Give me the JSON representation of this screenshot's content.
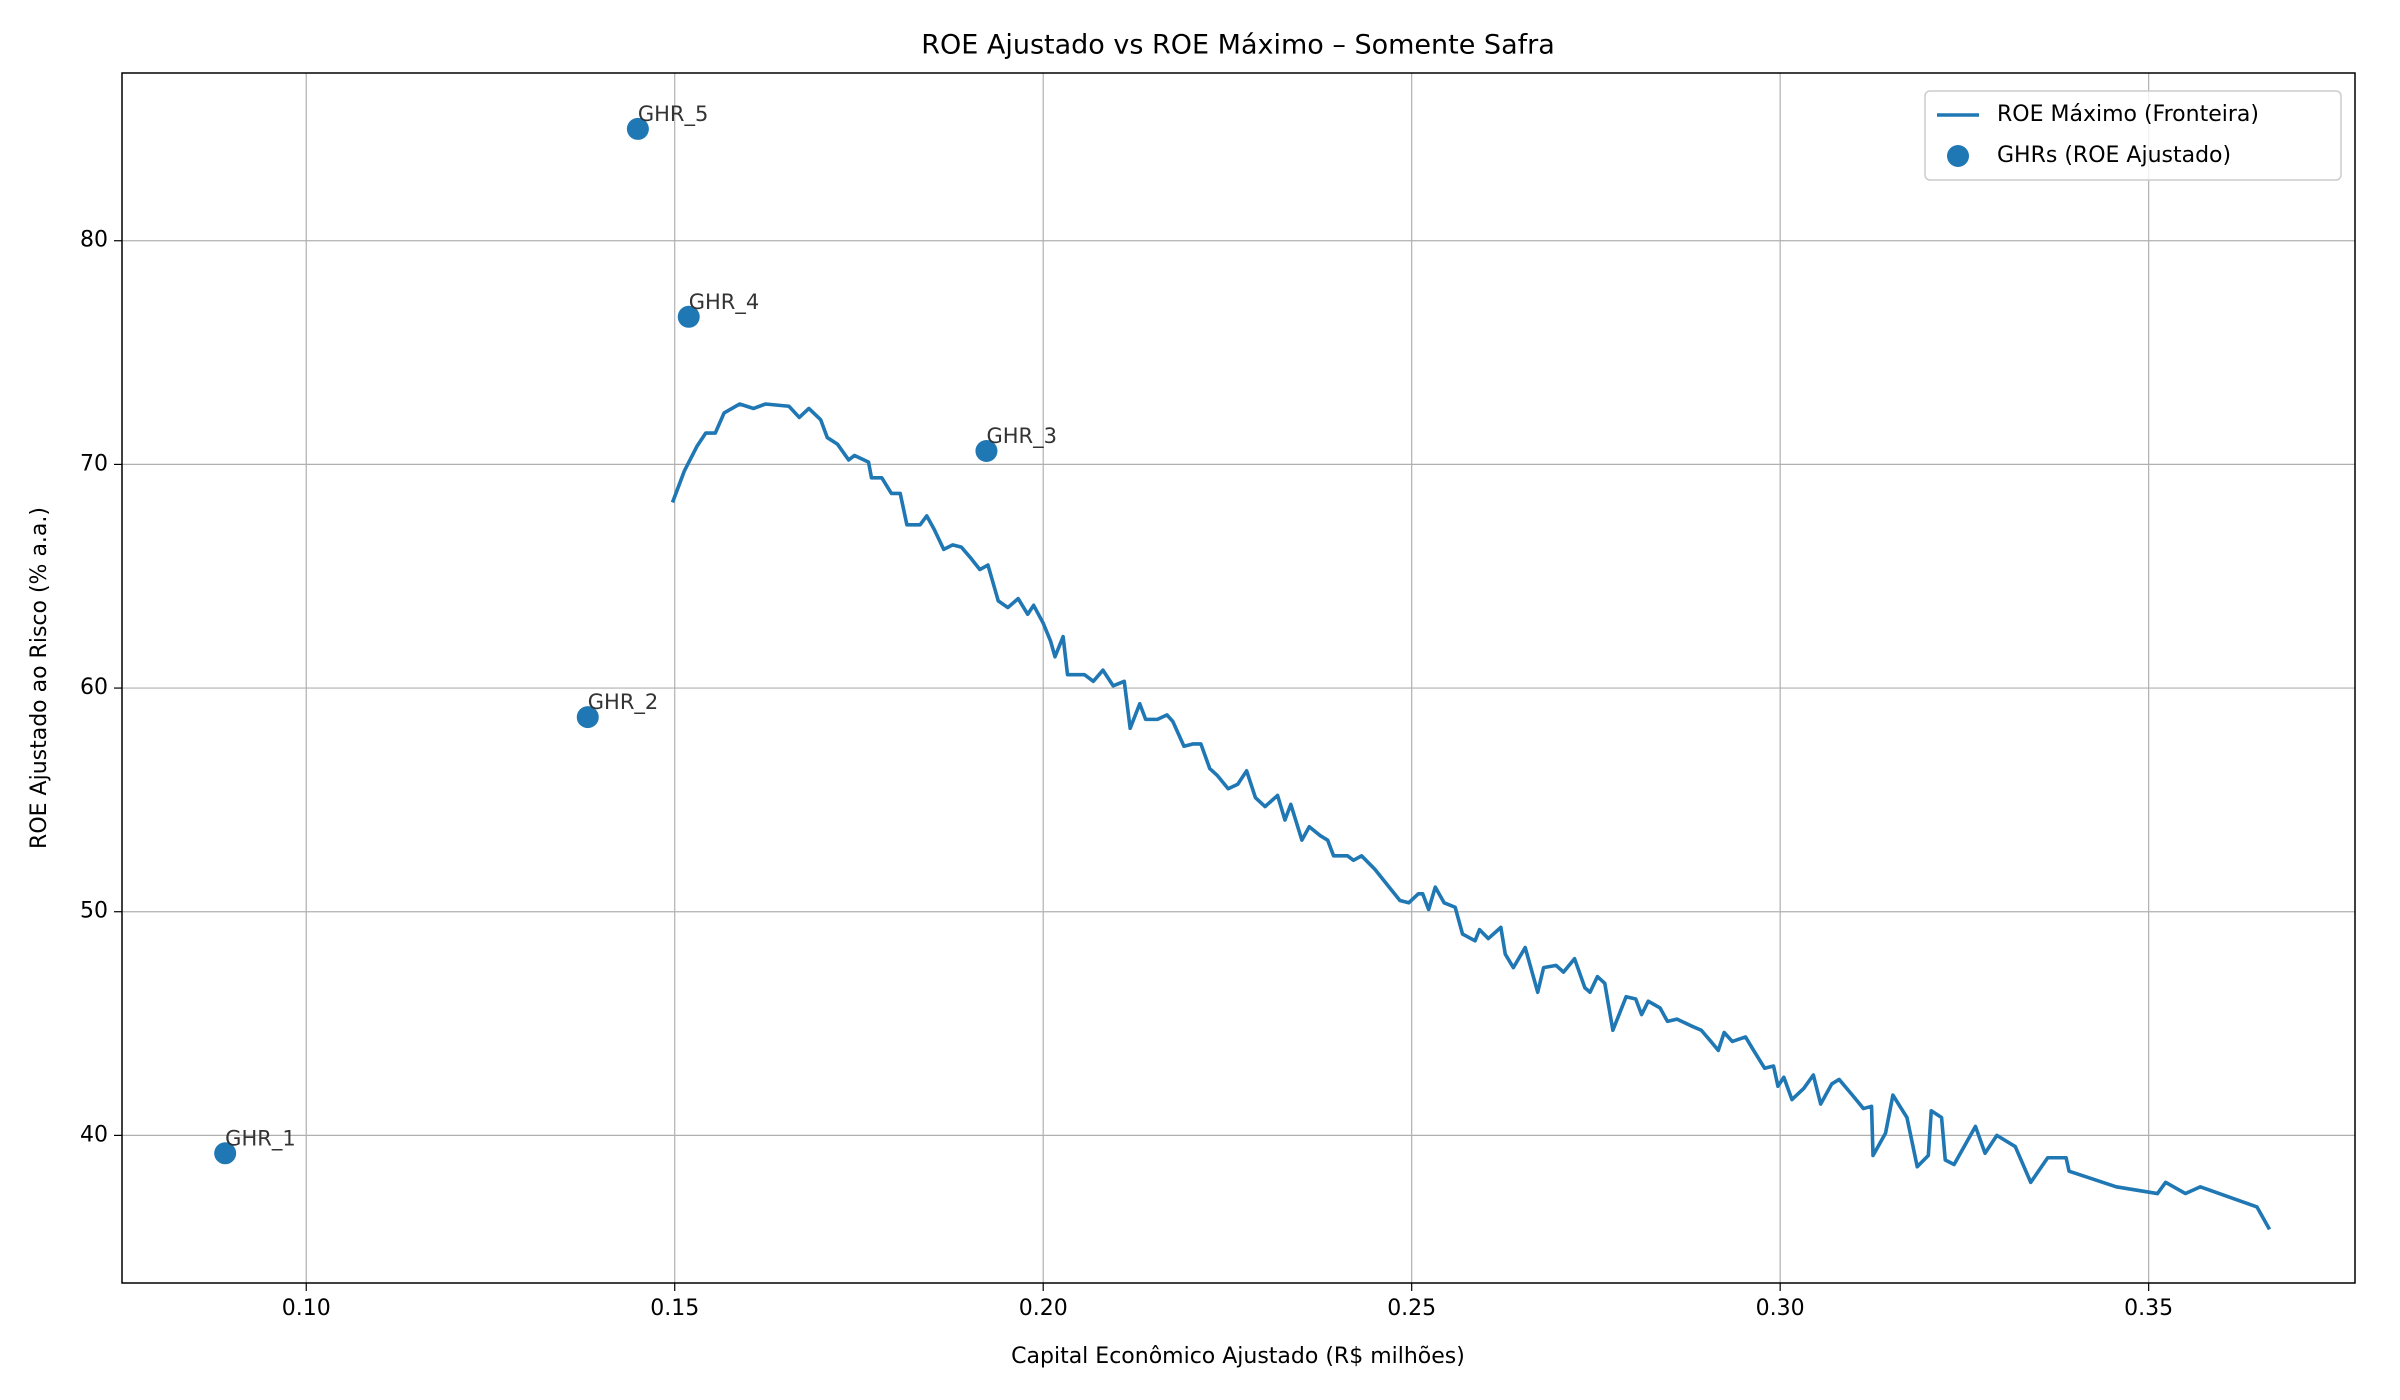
{
  "chart_data": {
    "type": "line",
    "title": "ROE Ajustado vs ROE Máximo – Somente Safra",
    "x_label": "Capital Econômico Ajustado (R$ milhões)",
    "y_label": "ROE Ajustado ao Risco (% a.a.)",
    "xlim": [
      0.075,
      0.378
    ],
    "ylim": [
      33.4,
      87.5
    ],
    "xticks": [
      {
        "value": 0.1,
        "label": "0.10"
      },
      {
        "value": 0.15,
        "label": "0.15"
      },
      {
        "value": 0.2,
        "label": "0.20"
      },
      {
        "value": 0.25,
        "label": "0.25"
      },
      {
        "value": 0.3,
        "label": "0.30"
      },
      {
        "value": 0.35,
        "label": "0.35"
      }
    ],
    "yticks": [
      40,
      50,
      60,
      70,
      80
    ],
    "grid": true,
    "legend": "upper right",
    "series": [
      {
        "name": "ROE Máximo (Fronteira)",
        "type": "line",
        "color": "#1f77b4",
        "x": [
          0.1497,
          0.1513,
          0.153,
          0.1542,
          0.1555,
          0.1567,
          0.1588,
          0.1607,
          0.1623,
          0.1655,
          0.1669,
          0.1682,
          0.1698,
          0.1707,
          0.1721,
          0.1736,
          0.1744,
          0.1763,
          0.1767,
          0.1781,
          0.1794,
          0.1806,
          0.1815,
          0.1833,
          0.1842,
          0.1852,
          0.1865,
          0.1877,
          0.1889,
          0.1902,
          0.1914,
          0.1925,
          0.1939,
          0.1952,
          0.1966,
          0.1979,
          0.1987,
          0.2,
          0.201,
          0.2016,
          0.2027,
          0.2033,
          0.2056,
          0.2068,
          0.2081,
          0.2095,
          0.211,
          0.2118,
          0.2131,
          0.2139,
          0.2155,
          0.2168,
          0.2176,
          0.2191,
          0.2203,
          0.2214,
          0.2226,
          0.2236,
          0.2251,
          0.2264,
          0.2276,
          0.2288,
          0.2301,
          0.2318,
          0.2328,
          0.2336,
          0.2351,
          0.2361,
          0.2376,
          0.2386,
          0.2394,
          0.2413,
          0.2421,
          0.2432,
          0.245,
          0.2467,
          0.2484,
          0.2496,
          0.2509,
          0.2515,
          0.2523,
          0.2532,
          0.2544,
          0.2559,
          0.2569,
          0.2586,
          0.2592,
          0.2604,
          0.2621,
          0.2627,
          0.2638,
          0.2654,
          0.2671,
          0.2679,
          0.2696,
          0.2706,
          0.2721,
          0.2735,
          0.2742,
          0.2752,
          0.2762,
          0.2773,
          0.2791,
          0.2804,
          0.2812,
          0.2821,
          0.2837,
          0.2847,
          0.286,
          0.2879,
          0.2893,
          0.2906,
          0.2916,
          0.2924,
          0.2935,
          0.2953,
          0.2964,
          0.2979,
          0.2991,
          0.2997,
          0.3005,
          0.3016,
          0.3032,
          0.3045,
          0.3055,
          0.307,
          0.308,
          0.3098,
          0.3113,
          0.3124,
          0.3126,
          0.3143,
          0.3153,
          0.3172,
          0.3186,
          0.3201,
          0.3205,
          0.3219,
          0.3224,
          0.3236,
          0.3265,
          0.3278,
          0.3294,
          0.3319,
          0.334,
          0.3363,
          0.3388,
          0.3392,
          0.3456,
          0.3512,
          0.3523,
          0.355,
          0.357,
          0.3647,
          0.3664
        ],
        "values": [
          68.3,
          69.7,
          70.8,
          71.4,
          71.4,
          72.3,
          72.7,
          72.5,
          72.7,
          72.6,
          72.1,
          72.5,
          72.0,
          71.2,
          70.9,
          70.2,
          70.4,
          70.1,
          69.4,
          69.4,
          68.7,
          68.7,
          67.3,
          67.3,
          67.7,
          67.1,
          66.2,
          66.4,
          66.3,
          65.8,
          65.3,
          65.5,
          63.9,
          63.6,
          64.0,
          63.3,
          63.7,
          62.9,
          62.1,
          61.4,
          62.3,
          60.6,
          60.6,
          60.3,
          60.8,
          60.1,
          60.3,
          58.2,
          59.3,
          58.6,
          58.6,
          58.8,
          58.5,
          57.4,
          57.5,
          57.5,
          56.4,
          56.1,
          55.5,
          55.7,
          56.3,
          55.1,
          54.7,
          55.2,
          54.1,
          54.8,
          53.2,
          53.8,
          53.4,
          53.2,
          52.5,
          52.5,
          52.3,
          52.5,
          51.9,
          51.2,
          50.5,
          50.4,
          50.8,
          50.8,
          50.1,
          51.1,
          50.4,
          50.2,
          49.0,
          48.7,
          49.2,
          48.8,
          49.3,
          48.1,
          47.5,
          48.4,
          46.4,
          47.5,
          47.6,
          47.3,
          47.9,
          46.6,
          46.4,
          47.1,
          46.8,
          44.7,
          46.2,
          46.1,
          45.4,
          46.0,
          45.7,
          45.1,
          45.2,
          44.9,
          44.7,
          44.2,
          43.8,
          44.6,
          44.2,
          44.4,
          43.8,
          43.0,
          43.1,
          42.2,
          42.6,
          41.6,
          42.1,
          42.7,
          41.4,
          42.3,
          42.5,
          41.8,
          41.2,
          41.3,
          39.1,
          40.1,
          41.8,
          40.8,
          38.6,
          39.1,
          41.1,
          40.8,
          38.9,
          38.7,
          40.4,
          39.2,
          40.0,
          39.5,
          37.9,
          39.0,
          39.0,
          38.4,
          37.7,
          37.4,
          37.9,
          37.4,
          37.7,
          36.8,
          35.8
        ]
      },
      {
        "name": "GHRs (ROE Ajustado)",
        "type": "scatter",
        "color": "#1f77b4",
        "x": [
          0.089,
          0.1382,
          0.1923,
          0.1519,
          0.145
        ],
        "values": [
          39.2,
          58.7,
          70.6,
          76.6,
          85.0
        ],
        "labels": [
          "GHR_1",
          "GHR_2",
          "GHR_3",
          "GHR_4",
          "GHR_5"
        ]
      }
    ]
  }
}
